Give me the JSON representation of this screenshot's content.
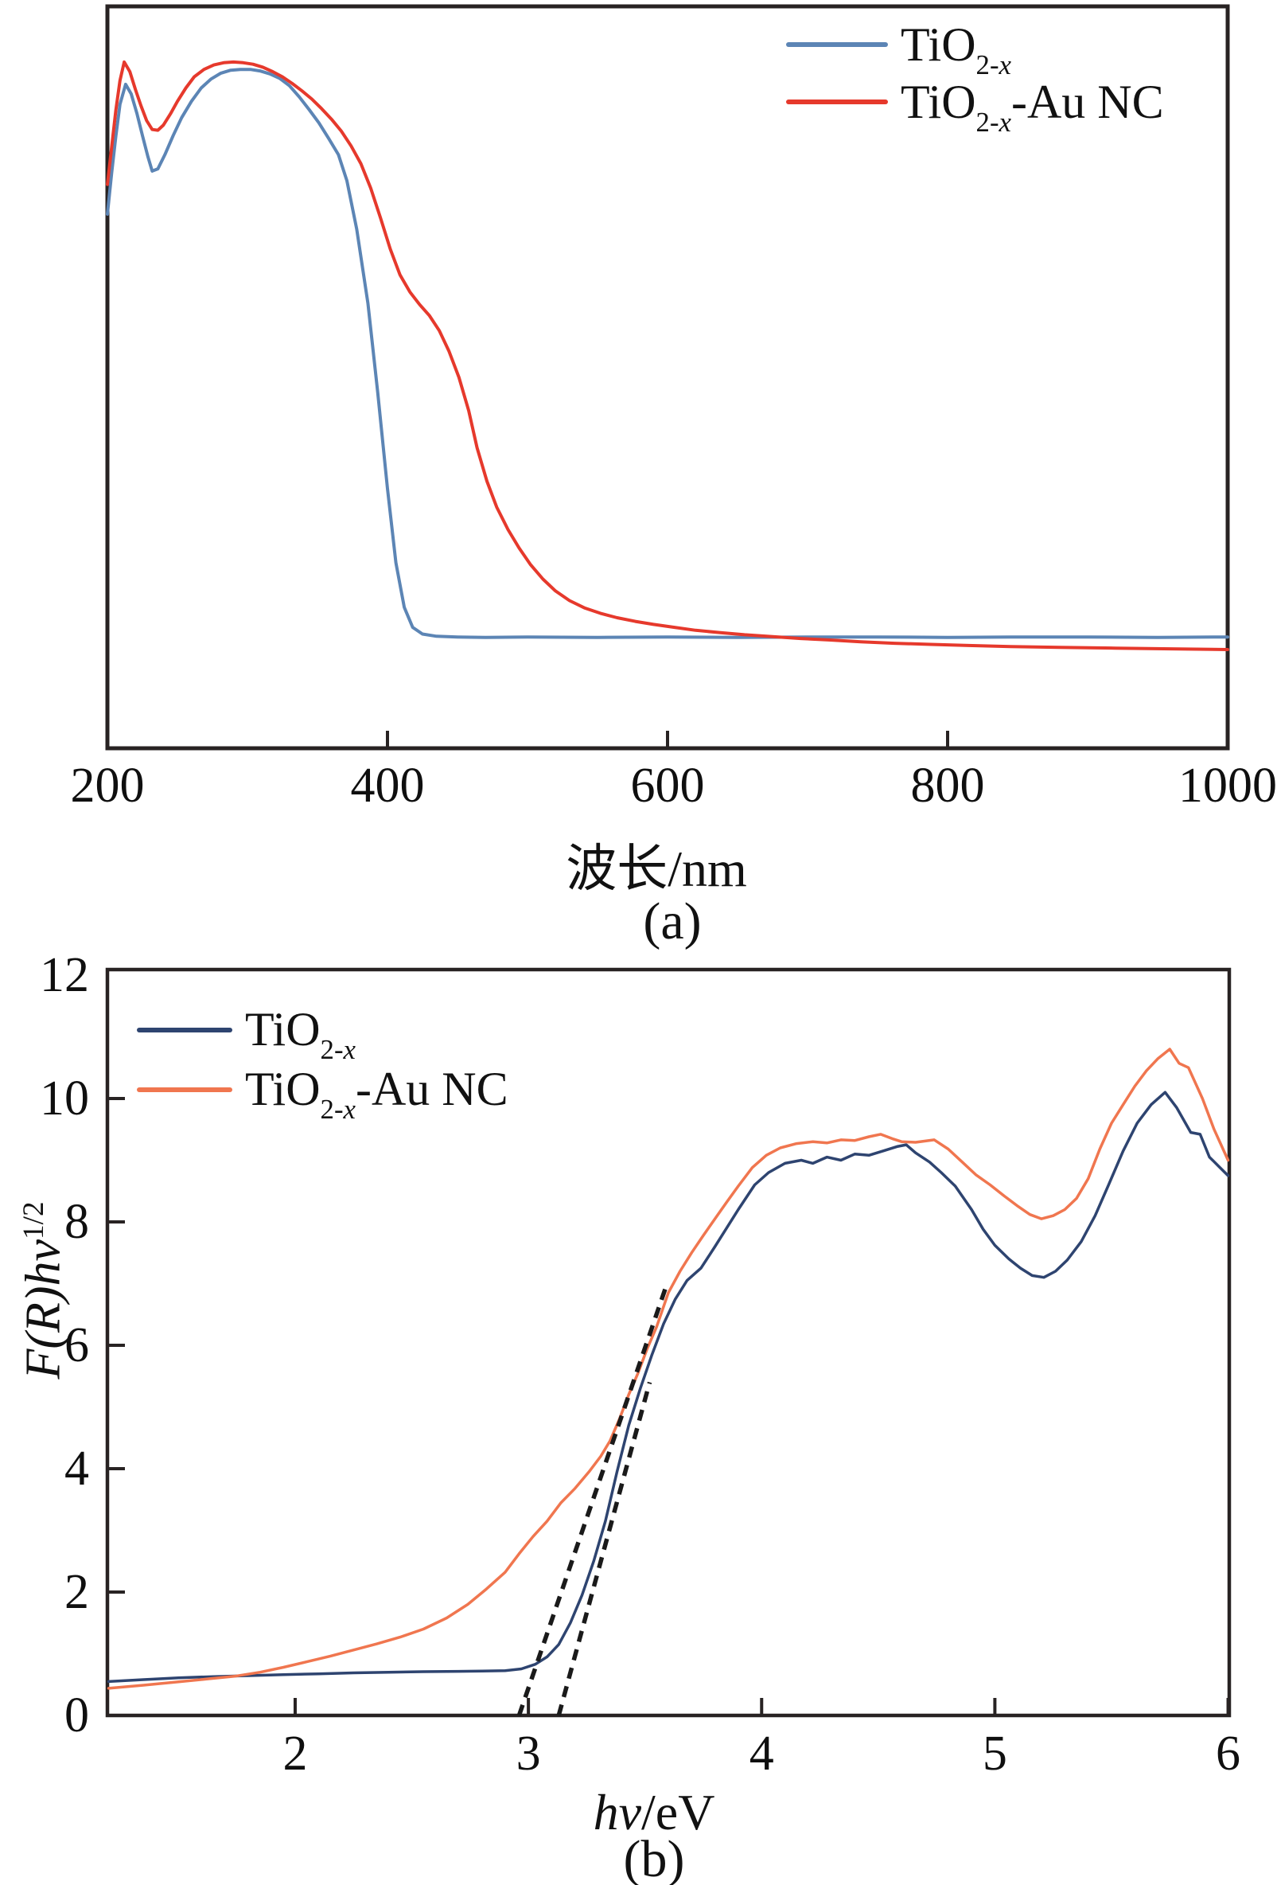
{
  "page": {
    "background": "#ffffff"
  },
  "panel_a": {
    "panel_label": "(a)",
    "xlabel": "波长/nm",
    "legend": [
      {
        "base": "TiO",
        "sub_num": "2-",
        "sub_var": "x",
        "suffix": ""
      },
      {
        "base": "TiO",
        "sub_num": "2-",
        "sub_var": "x",
        "suffix": "-Au NC"
      }
    ]
  },
  "panel_b": {
    "panel_label": "(b)",
    "xlabel_italic": "hv",
    "xlabel_rest": "/eV",
    "ylabel_main": "F(R)hv",
    "ylabel_sup": "1/2",
    "legend": [
      {
        "base": "TiO",
        "sub_num": "2-",
        "sub_var": "x",
        "suffix": ""
      },
      {
        "base": "TiO",
        "sub_num": "2-",
        "sub_var": "x",
        "suffix": "-Au NC"
      }
    ]
  },
  "chart_data": [
    {
      "id": "a",
      "type": "line",
      "title": "",
      "panel_label": "(a)",
      "xlabel": "波长/nm",
      "ylabel": "",
      "xlim": [
        200,
        1000
      ],
      "ylim": [
        0,
        1
      ],
      "xticks": [
        200,
        400,
        600,
        800,
        1000
      ],
      "yticks": [],
      "grid": false,
      "legend_position": "top-right",
      "frame_color": "#282323",
      "line_width": 4,
      "series": [
        {
          "name": "TiO2-x",
          "color": "#5c85b5",
          "x": [
            200,
            203,
            206,
            209,
            213,
            217,
            221,
            225,
            229,
            232,
            236,
            241,
            247,
            253,
            260,
            267,
            274,
            281,
            288,
            295,
            302,
            309,
            316,
            323,
            330,
            337,
            344,
            351,
            358,
            365,
            371,
            378,
            386,
            393,
            400,
            406,
            412,
            418,
            425,
            435,
            450,
            470,
            500,
            550,
            600,
            650,
            700,
            750,
            800,
            850,
            900,
            950,
            1000
          ],
          "y": [
            0.72,
            0.775,
            0.825,
            0.868,
            0.895,
            0.882,
            0.856,
            0.826,
            0.797,
            0.778,
            0.781,
            0.8,
            0.826,
            0.85,
            0.872,
            0.89,
            0.902,
            0.91,
            0.914,
            0.915,
            0.915,
            0.913,
            0.909,
            0.903,
            0.893,
            0.878,
            0.861,
            0.843,
            0.822,
            0.8,
            0.765,
            0.7,
            0.6,
            0.48,
            0.35,
            0.25,
            0.19,
            0.163,
            0.154,
            0.151,
            0.15,
            0.1495,
            0.15,
            0.1495,
            0.15,
            0.1495,
            0.15,
            0.15,
            0.1495,
            0.15,
            0.15,
            0.1495,
            0.15
          ]
        },
        {
          "name": "TiO2-x-Au NC",
          "color": "#e6392c",
          "x": [
            200,
            203,
            206,
            209,
            212,
            216,
            220,
            224,
            228,
            232,
            236,
            240,
            245,
            250,
            256,
            262,
            269,
            276,
            283,
            290,
            297,
            304,
            311,
            318,
            325,
            332,
            339,
            346,
            353,
            360,
            367,
            374,
            381,
            388,
            395,
            402,
            409,
            416,
            423,
            430,
            437,
            444,
            451,
            458,
            464,
            471,
            478,
            486,
            494,
            502,
            511,
            520,
            530,
            541,
            552,
            564,
            577,
            590,
            605,
            620,
            637,
            655,
            675,
            695,
            715,
            738,
            762,
            788,
            815,
            845,
            880,
            920,
            960,
            1000
          ],
          "y": [
            0.76,
            0.81,
            0.86,
            0.9,
            0.925,
            0.912,
            0.888,
            0.866,
            0.846,
            0.834,
            0.833,
            0.84,
            0.855,
            0.872,
            0.89,
            0.905,
            0.915,
            0.921,
            0.924,
            0.925,
            0.924,
            0.922,
            0.918,
            0.912,
            0.905,
            0.896,
            0.886,
            0.875,
            0.862,
            0.848,
            0.832,
            0.812,
            0.788,
            0.755,
            0.715,
            0.673,
            0.638,
            0.615,
            0.598,
            0.583,
            0.563,
            0.535,
            0.5,
            0.455,
            0.405,
            0.36,
            0.325,
            0.295,
            0.27,
            0.248,
            0.228,
            0.212,
            0.199,
            0.189,
            0.182,
            0.176,
            0.171,
            0.167,
            0.163,
            0.159,
            0.156,
            0.153,
            0.1505,
            0.148,
            0.146,
            0.1435,
            0.1415,
            0.14,
            0.1385,
            0.137,
            0.136,
            0.135,
            0.134,
            0.133
          ]
        }
      ]
    },
    {
      "id": "b",
      "type": "line",
      "title": "",
      "panel_label": "(b)",
      "xlabel": "hv/eV",
      "ylabel": "F(R)hv^1/2",
      "xlim": [
        1.195,
        6.005
      ],
      "ylim": [
        0,
        12.09
      ],
      "xticks": [
        2,
        3,
        4,
        5,
        6
      ],
      "yticks": [
        0,
        2,
        4,
        6,
        8,
        10,
        12
      ],
      "grid": false,
      "legend_position": "top-left",
      "frame_color": "#282323",
      "line_width": 3.5,
      "band_gap_intercepts_eV": [
        2.96,
        3.13
      ],
      "tangent_lines": [
        {
          "x": [
            2.96,
            3.59
          ],
          "y": [
            0,
            6.95
          ],
          "style": "dashed",
          "color": "#1a1a1a"
        },
        {
          "x": [
            3.13,
            3.52
          ],
          "y": [
            0,
            5.4
          ],
          "style": "dashed",
          "color": "#1a1a1a"
        }
      ],
      "series": [
        {
          "name": "TiO2-x",
          "color": "#2e4470",
          "x": [
            1.2,
            1.35,
            1.5,
            1.65,
            1.8,
            1.95,
            2.1,
            2.25,
            2.4,
            2.55,
            2.7,
            2.8,
            2.9,
            2.97,
            3.03,
            3.08,
            3.13,
            3.18,
            3.23,
            3.28,
            3.33,
            3.38,
            3.43,
            3.48,
            3.53,
            3.58,
            3.63,
            3.68,
            3.74,
            3.8,
            3.85,
            3.9,
            3.97,
            4.03,
            4.1,
            4.17,
            4.22,
            4.28,
            4.34,
            4.4,
            4.46,
            4.52,
            4.58,
            4.62,
            4.66,
            4.72,
            4.77,
            4.83,
            4.9,
            4.95,
            5.0,
            5.06,
            5.11,
            5.16,
            5.21,
            5.26,
            5.31,
            5.37,
            5.43,
            5.49,
            5.55,
            5.61,
            5.67,
            5.73,
            5.78,
            5.84,
            5.88,
            5.92,
            5.96,
            6.0
          ],
          "y": [
            0.55,
            0.58,
            0.61,
            0.63,
            0.645,
            0.66,
            0.675,
            0.69,
            0.7,
            0.71,
            0.715,
            0.72,
            0.725,
            0.755,
            0.83,
            0.95,
            1.15,
            1.5,
            1.95,
            2.5,
            3.15,
            3.95,
            4.7,
            5.3,
            5.85,
            6.35,
            6.75,
            7.05,
            7.25,
            7.6,
            7.9,
            8.2,
            8.6,
            8.8,
            8.95,
            9.0,
            8.95,
            9.05,
            9.0,
            9.1,
            9.08,
            9.15,
            9.22,
            9.25,
            9.12,
            8.97,
            8.8,
            8.58,
            8.2,
            7.88,
            7.62,
            7.4,
            7.25,
            7.13,
            7.1,
            7.2,
            7.38,
            7.68,
            8.1,
            8.62,
            9.15,
            9.6,
            9.9,
            10.1,
            9.85,
            9.45,
            9.42,
            9.05,
            8.9,
            8.75
          ]
        },
        {
          "name": "TiO2-x-Au NC",
          "color": "#f0764f",
          "x": [
            1.2,
            1.35,
            1.5,
            1.62,
            1.74,
            1.85,
            1.95,
            2.05,
            2.15,
            2.25,
            2.35,
            2.45,
            2.55,
            2.65,
            2.74,
            2.82,
            2.9,
            2.96,
            3.02,
            3.08,
            3.14,
            3.2,
            3.26,
            3.31,
            3.35,
            3.39,
            3.43,
            3.47,
            3.51,
            3.55,
            3.6,
            3.65,
            3.7,
            3.75,
            3.8,
            3.85,
            3.9,
            3.96,
            4.02,
            4.08,
            4.15,
            4.22,
            4.28,
            4.34,
            4.4,
            4.46,
            4.51,
            4.56,
            4.6,
            4.66,
            4.74,
            4.8,
            4.86,
            4.92,
            4.98,
            5.04,
            5.1,
            5.15,
            5.2,
            5.25,
            5.3,
            5.35,
            5.4,
            5.45,
            5.5,
            5.55,
            5.6,
            5.65,
            5.7,
            5.75,
            5.79,
            5.83,
            5.89,
            5.94,
            6.0
          ],
          "y": [
            0.44,
            0.49,
            0.545,
            0.59,
            0.635,
            0.7,
            0.78,
            0.87,
            0.96,
            1.06,
            1.16,
            1.27,
            1.4,
            1.58,
            1.8,
            2.05,
            2.32,
            2.62,
            2.9,
            3.15,
            3.45,
            3.68,
            3.95,
            4.2,
            4.45,
            4.8,
            5.2,
            5.55,
            5.95,
            6.3,
            6.85,
            7.2,
            7.5,
            7.78,
            8.05,
            8.32,
            8.58,
            8.88,
            9.08,
            9.2,
            9.27,
            9.3,
            9.28,
            9.33,
            9.32,
            9.38,
            9.42,
            9.35,
            9.3,
            9.29,
            9.33,
            9.18,
            8.97,
            8.76,
            8.6,
            8.42,
            8.25,
            8.12,
            8.05,
            8.1,
            8.2,
            8.38,
            8.7,
            9.18,
            9.6,
            9.9,
            10.2,
            10.45,
            10.65,
            10.8,
            10.57,
            10.5,
            10.0,
            9.5,
            9.0
          ]
        }
      ]
    }
  ]
}
